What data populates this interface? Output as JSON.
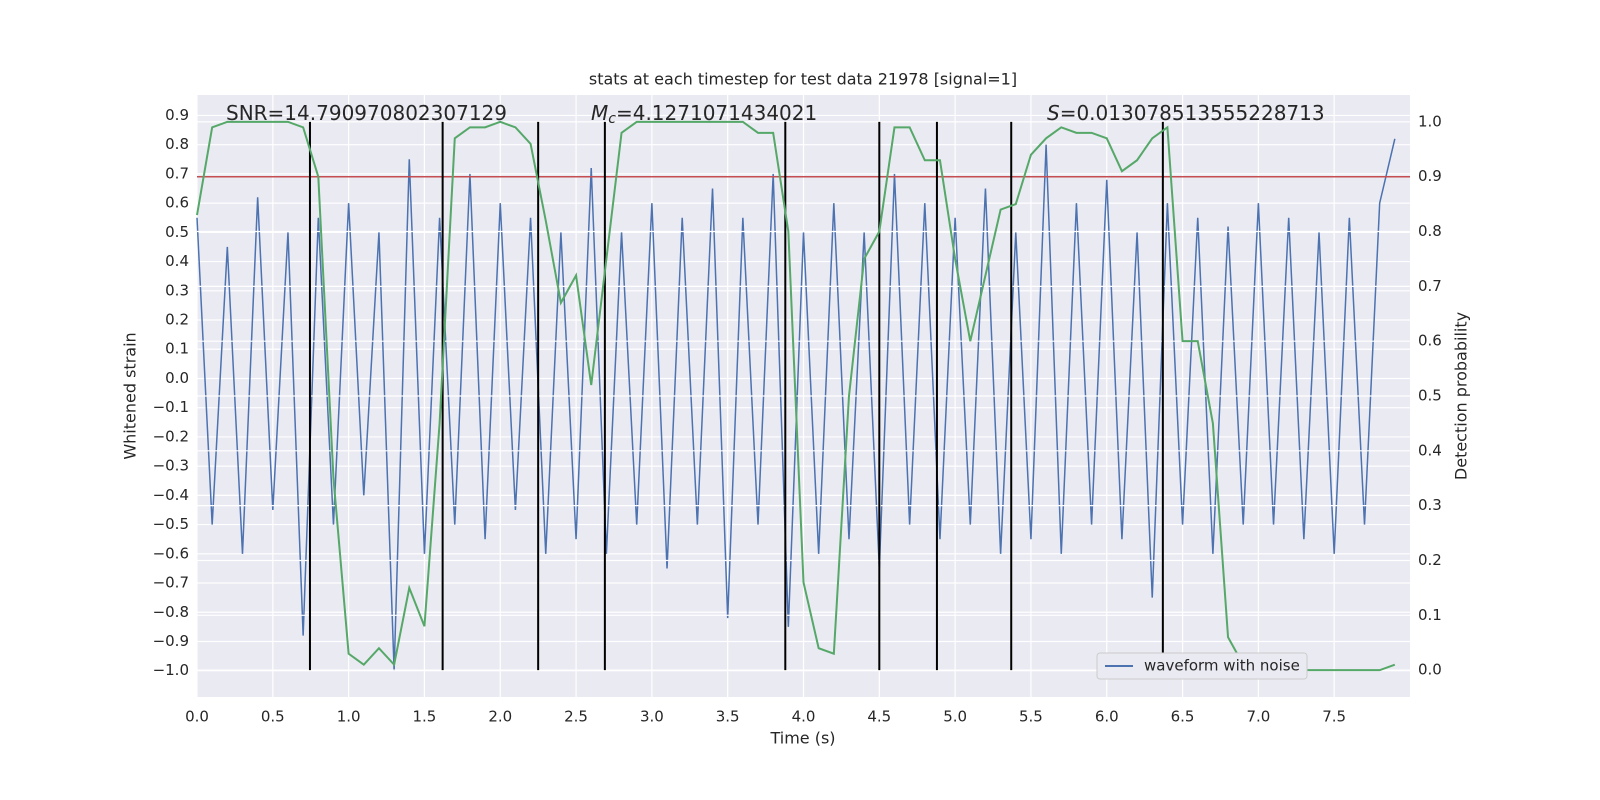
{
  "chart_data": {
    "type": "line",
    "title": "stats at each timestep for test data 21978 [signal=1]",
    "xlabel": "Time (s)",
    "ylabel": "Whitened strain",
    "y2label": "Detection probability",
    "annotations": [
      {
        "rest": "SNR=14.790970802307129"
      },
      {
        "italic": "M",
        "sub": "c",
        "rest": "=4.1271071434021"
      },
      {
        "italic": "S",
        "rest": "=0.013078513555228713"
      }
    ],
    "x": [
      0.0,
      0.1,
      0.2,
      0.3,
      0.4,
      0.5,
      0.6,
      0.7,
      0.8,
      0.9,
      1.0,
      1.1,
      1.2,
      1.3,
      1.4,
      1.5,
      1.6,
      1.7,
      1.8,
      1.9,
      2.0,
      2.1,
      2.2,
      2.3,
      2.4,
      2.5,
      2.6,
      2.7,
      2.8,
      2.9,
      3.0,
      3.1,
      3.2,
      3.3,
      3.4,
      3.5,
      3.6,
      3.7,
      3.8,
      3.9,
      4.0,
      4.1,
      4.2,
      4.3,
      4.4,
      4.5,
      4.6,
      4.7,
      4.8,
      4.9,
      5.0,
      5.1,
      5.2,
      5.3,
      5.4,
      5.5,
      5.6,
      5.7,
      5.8,
      5.9,
      6.0,
      6.1,
      6.2,
      6.3,
      6.4,
      6.5,
      6.6,
      6.7,
      6.8,
      6.9,
      7.0,
      7.1,
      7.2,
      7.3,
      7.4,
      7.5,
      7.6,
      7.7,
      7.8,
      7.9
    ],
    "series": [
      {
        "name": "waveform with noise",
        "color": "#4c72b0",
        "axis": "y",
        "values": [
          0.55,
          -0.5,
          0.45,
          -0.6,
          0.62,
          -0.45,
          0.5,
          -0.88,
          0.55,
          -0.5,
          0.6,
          -0.4,
          0.5,
          -1.0,
          0.75,
          -0.6,
          0.55,
          -0.5,
          0.7,
          -0.55,
          0.6,
          -0.45,
          0.55,
          -0.6,
          0.5,
          -0.55,
          0.72,
          -0.6,
          0.5,
          -0.5,
          0.6,
          -0.65,
          0.55,
          -0.5,
          0.65,
          -0.82,
          0.55,
          -0.5,
          0.7,
          -0.85,
          0.5,
          -0.6,
          0.6,
          -0.55,
          0.5,
          -0.65,
          0.7,
          -0.5,
          0.6,
          -0.55,
          0.55,
          -0.5,
          0.65,
          -0.6,
          0.5,
          -0.55,
          0.8,
          -0.6,
          0.6,
          -0.5,
          0.68,
          -0.55,
          0.5,
          -0.75,
          0.6,
          -0.5,
          0.55,
          -0.6,
          0.52,
          -0.5,
          0.6,
          -0.5,
          0.55,
          -0.55,
          0.5,
          -0.6,
          0.55,
          -0.5,
          0.6,
          0.82
        ]
      },
      {
        "color": "#55a868",
        "axis": "y2",
        "values": [
          0.83,
          0.99,
          1.0,
          1.0,
          1.0,
          1.0,
          1.0,
          0.99,
          0.9,
          0.35,
          0.03,
          0.01,
          0.04,
          0.01,
          0.15,
          0.08,
          0.45,
          0.97,
          0.99,
          0.99,
          1.0,
          0.99,
          0.96,
          0.82,
          0.67,
          0.72,
          0.52,
          0.75,
          0.98,
          1.0,
          1.0,
          1.0,
          1.0,
          1.0,
          1.0,
          1.0,
          1.0,
          0.98,
          0.98,
          0.8,
          0.16,
          0.04,
          0.03,
          0.5,
          0.75,
          0.8,
          0.99,
          0.99,
          0.93,
          0.93,
          0.75,
          0.6,
          0.72,
          0.84,
          0.85,
          0.94,
          0.97,
          0.99,
          0.98,
          0.98,
          0.97,
          0.91,
          0.93,
          0.97,
          0.99,
          0.6,
          0.6,
          0.45,
          0.06,
          0.01,
          0.0,
          0.0,
          0.0,
          0.0,
          0.0,
          0.0,
          0.0,
          0.0,
          0.0,
          0.01
        ]
      }
    ],
    "hlines": [
      {
        "value": 0.9,
        "axis": "y2",
        "color": "#c44e52"
      }
    ],
    "vlines": [
      0.745,
      1.62,
      2.25,
      2.69,
      3.88,
      4.5,
      4.88,
      5.37,
      6.37
    ],
    "xlim": [
      0,
      8
    ],
    "xticks": [
      {
        "value": 0,
        "label": "0.0"
      },
      0.5,
      {
        "value": 1,
        "label": "1.0"
      },
      1.5,
      {
        "value": 2,
        "label": "2.0"
      },
      2.5,
      {
        "value": 3,
        "label": "3.0"
      },
      3.5,
      {
        "value": 4,
        "label": "4.0"
      },
      4.5,
      {
        "value": 5,
        "label": "5.0"
      },
      5.5,
      {
        "value": 6,
        "label": "6.0"
      },
      6.5,
      {
        "value": 7,
        "label": "7.0"
      },
      7.5
    ],
    "ylim": [
      -1.09,
      0.97
    ],
    "yticks": [
      {
        "value": -1,
        "label": "−1.0"
      },
      {
        "value": -0.9,
        "label": "−0.9"
      },
      {
        "value": -0.8,
        "label": "−0.8"
      },
      {
        "value": -0.7,
        "label": "−0.7"
      },
      {
        "value": -0.6,
        "label": "−0.6"
      },
      {
        "value": -0.5,
        "label": "−0.5"
      },
      {
        "value": -0.4,
        "label": "−0.4"
      },
      {
        "value": -0.3,
        "label": "−0.3"
      },
      {
        "value": -0.2,
        "label": "−0.2"
      },
      {
        "value": -0.1,
        "label": "−0.1"
      },
      {
        "value": 0,
        "label": "0.0"
      },
      0.1,
      0.2,
      0.3,
      0.4,
      0.5,
      0.6,
      0.7,
      0.8,
      0.9
    ],
    "y2lim": [
      -0.049,
      1.049
    ],
    "y2ticks": [
      {
        "value": 0,
        "label": "0.0"
      },
      0.1,
      0.2,
      0.3,
      0.4,
      0.5,
      0.6,
      0.7,
      0.8,
      0.9,
      {
        "value": 1,
        "label": "1.0"
      }
    ],
    "grid": true,
    "legend": "lower right"
  }
}
